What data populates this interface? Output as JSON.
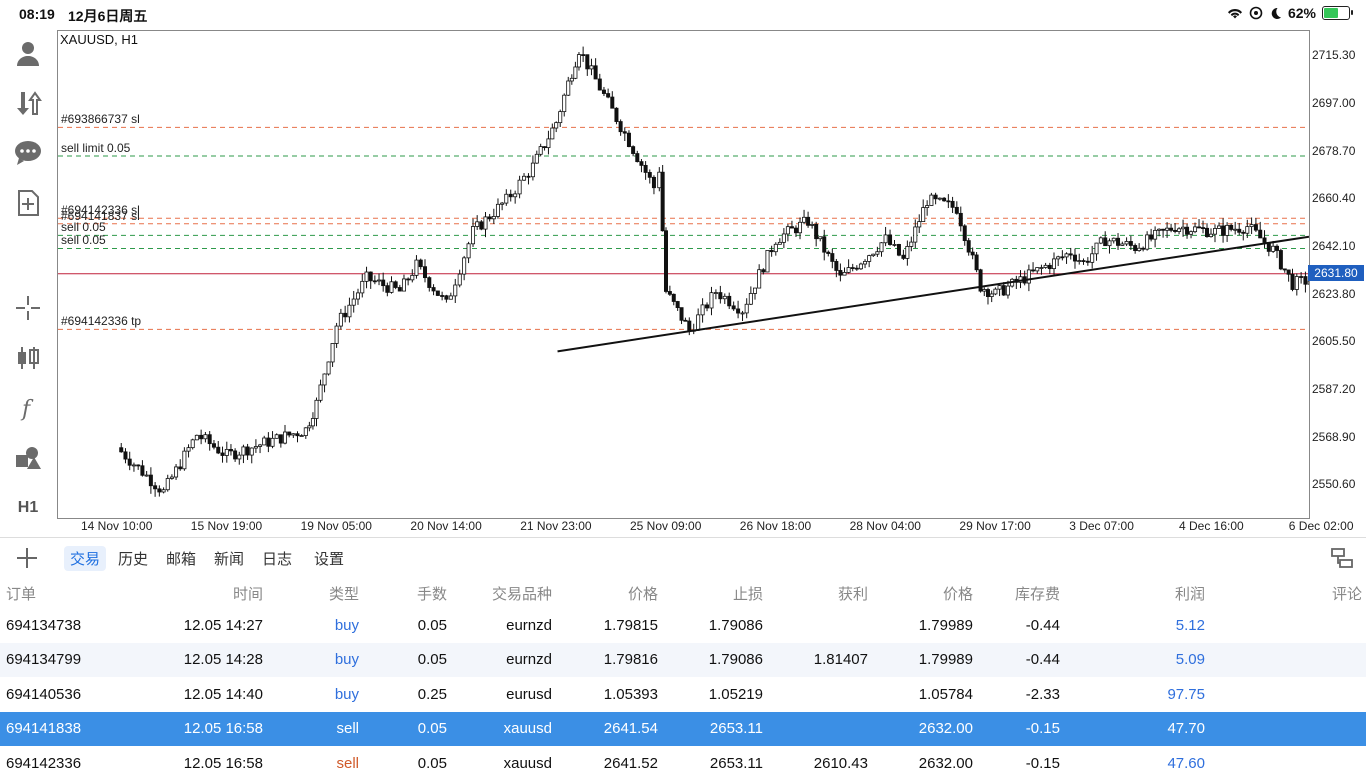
{
  "status_bar": {
    "time": "08:19",
    "date": "12月6日周五",
    "battery": "62%",
    "battery_level": 0.62
  },
  "toolbar": {
    "icons": [
      "account-icon",
      "trade-icon",
      "chat-icon",
      "new-order-icon",
      "crosshair-icon",
      "candle-type-icon",
      "indicator-icon",
      "objects-icon"
    ],
    "timeframe": "H1"
  },
  "chart": {
    "symbol": "XAUUSD, H1",
    "y_ticks": [
      "2715.30",
      "2697.00",
      "2678.70",
      "2660.40",
      "2642.10",
      "2623.80",
      "2605.50",
      "2587.20",
      "2568.90",
      "2550.60"
    ],
    "x_ticks": [
      "14 Nov 10:00",
      "15 Nov 19:00",
      "19 Nov 05:00",
      "20 Nov 14:00",
      "21 Nov 23:00",
      "25 Nov 09:00",
      "26 Nov 18:00",
      "28 Nov 04:00",
      "29 Nov 17:00",
      "3 Dec 07:00",
      "4 Dec 16:00",
      "6 Dec 02:00"
    ],
    "current_price": "2631.80",
    "level_labels": {
      "sl1": "#693866737 sl",
      "sell_limit": "sell limit 0.05",
      "sl2": "#694142336 sl",
      "sl3": "#694141837 sl",
      "sell1": "sell 0.05",
      "sell2": "sell 0.05",
      "tp": "#694142336 tp"
    },
    "colors": {
      "sl_line": "#e8704a",
      "entry_line": "#2e9a4a",
      "price_line": "#c0203a",
      "accent": "#1f5fbf"
    }
  },
  "chart_data": {
    "type": "candlestick",
    "symbol": "XAUUSD",
    "timeframe": "H1",
    "ylim": [
      2538,
      2725
    ],
    "y_ticks": [
      2715.3,
      2697.0,
      2678.7,
      2660.4,
      2642.1,
      2623.8,
      2605.5,
      2587.2,
      2568.9,
      2550.6
    ],
    "x_ticks": [
      "14 Nov 10:00",
      "15 Nov 19:00",
      "19 Nov 05:00",
      "20 Nov 14:00",
      "21 Nov 23:00",
      "25 Nov 09:00",
      "26 Nov 18:00",
      "28 Nov 04:00",
      "29 Nov 17:00",
      "3 Dec 07:00",
      "4 Dec 16:00",
      "6 Dec 02:00"
    ],
    "close_path": [
      [
        "14 Nov 10:00",
        2565
      ],
      [
        "15 Nov 00:00",
        2548
      ],
      [
        "15 Nov 10:00",
        2570
      ],
      [
        "15 Nov 19:00",
        2562
      ],
      [
        "18 Nov 06:00",
        2572
      ],
      [
        "18 Nov 14:00",
        2582
      ],
      [
        "19 Nov 05:00",
        2612
      ],
      [
        "19 Nov 14:00",
        2630
      ],
      [
        "20 Nov 00:00",
        2625
      ],
      [
        "20 Nov 05:00",
        2635
      ],
      [
        "20 Nov 14:00",
        2620
      ],
      [
        "20 Nov 22:00",
        2648
      ],
      [
        "21 Nov 08:00",
        2660
      ],
      [
        "21 Nov 16:00",
        2673
      ],
      [
        "21 Nov 23:00",
        2690
      ],
      [
        "22 Nov 08:00",
        2705
      ],
      [
        "22 Nov 16:00",
        2718
      ],
      [
        "25 Nov 00:00",
        2665
      ],
      [
        "25 Nov 04:00",
        2672
      ],
      [
        "25 Nov 09:00",
        2625
      ],
      [
        "25 Nov 16:00",
        2610
      ],
      [
        "26 Nov 00:00",
        2625
      ],
      [
        "26 Nov 08:00",
        2618
      ],
      [
        "26 Nov 18:00",
        2645
      ],
      [
        "27 Nov 04:00",
        2652
      ],
      [
        "27 Nov 14:00",
        2630
      ],
      [
        "28 Nov 04:00",
        2645
      ],
      [
        "28 Nov 10:00",
        2637
      ],
      [
        "28 Nov 18:00",
        2660
      ],
      [
        "29 Nov 04:00",
        2657
      ],
      [
        "29 Nov 12:00",
        2627
      ],
      [
        "29 Nov 17:00",
        2624
      ],
      [
        "2 Dec 04:00",
        2640
      ],
      [
        "2 Dec 14:00",
        2636
      ],
      [
        "3 Dec 07:00",
        2645
      ],
      [
        "3 Dec 16:00",
        2642
      ],
      [
        "4 Dec 04:00",
        2650
      ],
      [
        "4 Dec 16:00",
        2648
      ],
      [
        "5 Dec 02:00",
        2650
      ],
      [
        "5 Dec 10:00",
        2641
      ],
      [
        "5 Dec 16:00",
        2628
      ],
      [
        "6 Dec 00:00",
        2630
      ],
      [
        "6 Dec 02:00",
        2632
      ]
    ],
    "horizontal_levels": [
      {
        "label": "#693866737 sl",
        "price": 2688
      },
      {
        "label": "sell limit 0.05",
        "price": 2677
      },
      {
        "label": "#694142336 sl",
        "price": 2653.11
      },
      {
        "label": "#694141837 sl",
        "price": 2651
      },
      {
        "label": "sell 0.05",
        "price": 2646.5
      },
      {
        "label": "sell 0.05",
        "price": 2641.5
      },
      {
        "label": "#694142336 tp",
        "price": 2610.43
      }
    ],
    "current_price": 2631.8,
    "trendline": {
      "start": [
        "22 Nov 00:00",
        2602
      ],
      "end": [
        "6 Dec 02:00",
        2646
      ]
    }
  },
  "tabs": [
    "交易",
    "历史",
    "邮箱",
    "新闻",
    "日志",
    "设置"
  ],
  "active_tab": 0,
  "table": {
    "headers": [
      "订单",
      "时间",
      "类型",
      "手数",
      "交易品种",
      "价格",
      "止损",
      "获利",
      "价格",
      "库存费",
      "利润",
      "评论"
    ],
    "rows": [
      [
        "694134738",
        "12.05 14:27",
        "buy",
        "0.05",
        "eurnzd",
        "1.79815",
        "1.79086",
        "",
        "1.79989",
        "-0.44",
        "5.12",
        ""
      ],
      [
        "694134799",
        "12.05 14:28",
        "buy",
        "0.05",
        "eurnzd",
        "1.79816",
        "1.79086",
        "1.81407",
        "1.79989",
        "-0.44",
        "5.09",
        ""
      ],
      [
        "694140536",
        "12.05 14:40",
        "buy",
        "0.25",
        "eurusd",
        "1.05393",
        "1.05219",
        "",
        "1.05784",
        "-2.33",
        "97.75",
        ""
      ],
      [
        "694141838",
        "12.05 16:58",
        "sell",
        "0.05",
        "xauusd",
        "2641.54",
        "2653.11",
        "",
        "2632.00",
        "-0.15",
        "47.70",
        ""
      ],
      [
        "694142336",
        "12.05 16:58",
        "sell",
        "0.05",
        "xauusd",
        "2641.52",
        "2653.11",
        "2610.43",
        "2632.00",
        "-0.15",
        "47.60",
        ""
      ]
    ],
    "selected_row": 3
  }
}
